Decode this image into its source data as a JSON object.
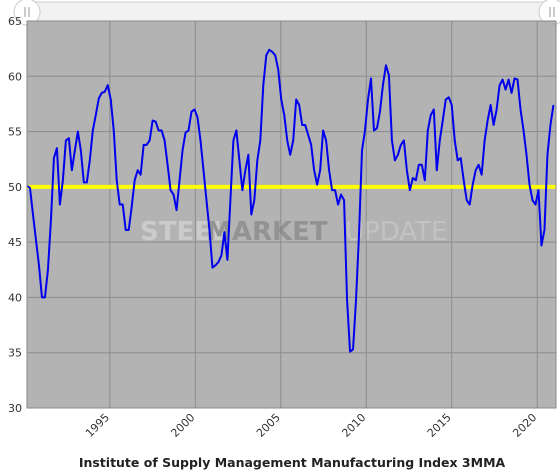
{
  "chart_data": {
    "type": "line",
    "title": "Institute of Supply Management Manufacturing Index 3MMA",
    "watermark": [
      "STEEL",
      "MARKET",
      "UPDATE"
    ],
    "color": "#0000ee",
    "reference_line": {
      "value": 50,
      "color": "#ffff00"
    },
    "grid": true,
    "xlim": [
      1990.15,
      2021.1
    ],
    "ylim": [
      30,
      65
    ],
    "xticks": [
      1995,
      2000,
      2005,
      2010,
      2015,
      2020
    ],
    "yticks": [
      30,
      35,
      40,
      45,
      50,
      55,
      60,
      65
    ],
    "x": [
      1990.15,
      1990.325,
      1990.5,
      1990.675,
      1990.85,
      1991.025,
      1991.2,
      1991.375,
      1991.55,
      1991.725,
      1991.9,
      1992.075,
      1992.25,
      1992.425,
      1992.6,
      1992.775,
      1992.95,
      1993.125,
      1993.3,
      1993.475,
      1993.65,
      1993.825,
      1994.0,
      1994.175,
      1994.35,
      1994.525,
      1994.7,
      1994.875,
      1995.05,
      1995.225,
      1995.4,
      1995.575,
      1995.75,
      1995.925,
      1996.1,
      1996.275,
      1996.45,
      1996.625,
      1996.8,
      1996.975,
      1997.15,
      1997.325,
      1997.5,
      1997.675,
      1997.85,
      1998.025,
      1998.2,
      1998.375,
      1998.55,
      1998.725,
      1998.9,
      1999.075,
      1999.25,
      1999.425,
      1999.6,
      1999.775,
      1999.95,
      2000.125,
      2000.3,
      2000.475,
      2000.65,
      2000.825,
      2001.0,
      2001.175,
      2001.35,
      2001.525,
      2001.7,
      2001.875,
      2002.05,
      2002.225,
      2002.4,
      2002.575,
      2002.75,
      2002.925,
      2003.1,
      2003.275,
      2003.45,
      2003.625,
      2003.8,
      2003.975,
      2004.15,
      2004.325,
      2004.5,
      2004.675,
      2004.85,
      2005.025,
      2005.2,
      2005.375,
      2005.55,
      2005.725,
      2005.9,
      2006.075,
      2006.25,
      2006.425,
      2006.6,
      2006.775,
      2006.95,
      2007.125,
      2007.3,
      2007.475,
      2007.65,
      2007.825,
      2008.0,
      2008.175,
      2008.35,
      2008.525,
      2008.7,
      2008.875,
      2009.05,
      2009.225,
      2009.4,
      2009.575,
      2009.75,
      2009.925,
      2010.1,
      2010.275,
      2010.45,
      2010.625,
      2010.8,
      2010.975,
      2011.15,
      2011.325,
      2011.5,
      2011.675,
      2011.85,
      2012.025,
      2012.2,
      2012.375,
      2012.55,
      2012.725,
      2012.9,
      2013.075,
      2013.25,
      2013.425,
      2013.6,
      2013.775,
      2013.95,
      2014.125,
      2014.3,
      2014.475,
      2014.65,
      2014.825,
      2015.0,
      2015.175,
      2015.35,
      2015.525,
      2015.7,
      2015.875,
      2016.05,
      2016.225,
      2016.4,
      2016.575,
      2016.75,
      2016.925,
      2017.1,
      2017.275,
      2017.45,
      2017.625,
      2017.8,
      2017.975,
      2018.15,
      2018.325,
      2018.5,
      2018.675,
      2018.85,
      2019.025,
      2019.2,
      2019.375,
      2019.55,
      2019.725,
      2019.9,
      2020.075,
      2020.25,
      2020.425,
      2020.6,
      2020.775,
      2020.95
    ],
    "values": [
      50.1,
      49.9,
      47.5,
      45.2,
      42.9,
      40.0,
      40.0,
      42.5,
      47.0,
      52.6,
      53.5,
      48.4,
      50.6,
      54.2,
      54.4,
      51.5,
      53.3,
      55.0,
      53.3,
      50.4,
      50.4,
      52.4,
      55.1,
      56.5,
      58.0,
      58.5,
      58.6,
      59.2,
      57.9,
      55.1,
      50.6,
      48.4,
      48.4,
      46.1,
      46.1,
      48.2,
      50.6,
      51.5,
      51.1,
      53.8,
      53.8,
      54.2,
      56.0,
      55.9,
      55.1,
      55.1,
      54.2,
      52.0,
      49.7,
      49.3,
      47.9,
      50.6,
      53.3,
      54.9,
      55.1,
      56.8,
      57.0,
      56.3,
      54.2,
      51.5,
      48.8,
      46.1,
      42.7,
      42.9,
      43.2,
      43.8,
      45.9,
      43.4,
      48.8,
      54.2,
      55.1,
      52.4,
      49.7,
      51.5,
      52.9,
      47.5,
      48.8,
      52.4,
      54.2,
      59.2,
      61.9,
      62.4,
      62.2,
      61.9,
      60.6,
      57.9,
      56.5,
      54.2,
      52.9,
      54.2,
      57.9,
      57.4,
      55.6,
      55.6,
      54.7,
      53.8,
      51.5,
      50.2,
      51.5,
      55.1,
      54.2,
      51.5,
      49.7,
      49.7,
      48.4,
      49.3,
      48.8,
      39.8,
      35.1,
      35.3,
      39.8,
      45.7,
      53.3,
      55.1,
      57.9,
      59.8,
      55.1,
      55.3,
      56.8,
      59.2,
      61.0,
      60.1,
      54.2,
      52.4,
      52.9,
      53.8,
      54.2,
      51.5,
      49.7,
      50.8,
      50.6,
      52.0,
      52.0,
      50.6,
      55.1,
      56.5,
      57.0,
      51.5,
      54.2,
      56.0,
      57.9,
      58.1,
      57.4,
      54.2,
      52.4,
      52.6,
      50.6,
      48.8,
      48.4,
      50.2,
      51.5,
      52.0,
      51.1,
      54.2,
      56.0,
      57.4,
      55.6,
      57.0,
      59.2,
      59.7,
      58.8,
      59.7,
      58.5,
      59.8,
      59.7,
      57.0,
      55.1,
      52.9,
      50.2,
      48.8,
      48.4,
      49.7,
      44.7,
      46.1,
      52.9,
      55.6,
      57.4
    ]
  }
}
